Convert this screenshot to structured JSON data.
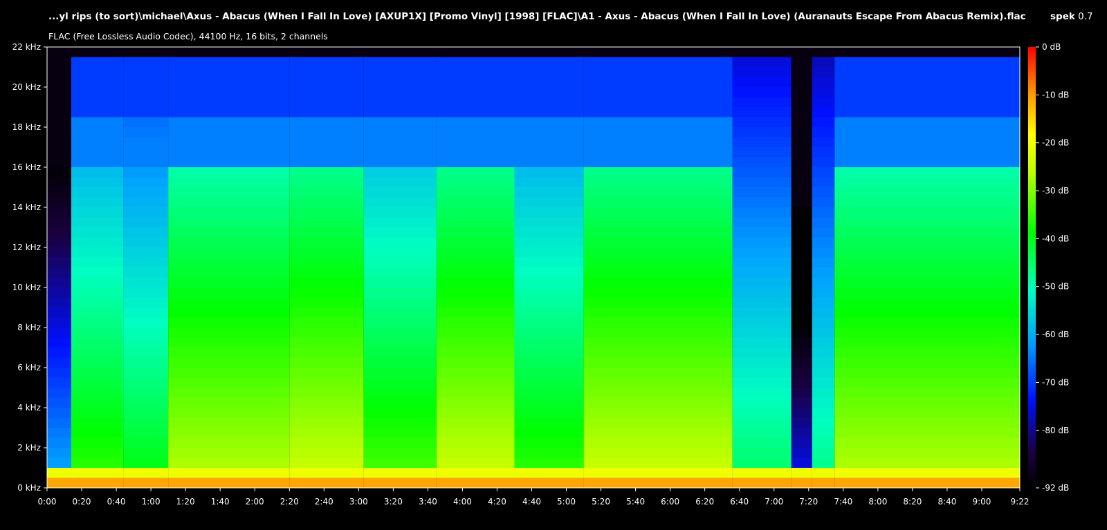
{
  "window": {
    "file_title": "...yl rips (to sort)\\michael\\Axus - Abacus (When I Fall In Love) [AXUP1X] [Promo Vinyl] [1998] [FLAC]\\A1 - Axus - Abacus (When I Fall In Love) (Auranauts Escape From Abacus Remix).flac",
    "app_name": "spek",
    "app_version": "0.7",
    "stream_info": "FLAC (Free Lossless Audio Codec), 44100 Hz, 16 bits, 2 channels"
  },
  "chart_data": {
    "type": "heatmap",
    "title": "...yl rips (to sort)\\michael\\Axus - Abacus (When I Fall In Love) [AXUP1X] [Promo Vinyl] [1998] [FLAC]\\A1 - Axus - Abacus (When I Fall In Love) (Auranauts Escape From Abacus Remix).flac",
    "subtitle": "FLAC (Free Lossless Audio Codec), 44100 Hz, 16 bits, 2 channels",
    "x_unit": "time",
    "y_unit": "kHz",
    "xlim_seconds": [
      0,
      562
    ],
    "ylim_khz": [
      0,
      22
    ],
    "x_ticks": [
      "0:00",
      "0:20",
      "0:40",
      "1:00",
      "1:20",
      "1:40",
      "2:00",
      "2:20",
      "2:40",
      "3:00",
      "3:20",
      "3:40",
      "4:00",
      "4:20",
      "4:40",
      "5:00",
      "5:20",
      "5:40",
      "6:00",
      "6:20",
      "6:40",
      "7:00",
      "7:20",
      "7:40",
      "8:00",
      "8:20",
      "8:40",
      "9:00",
      "9:22"
    ],
    "x_tick_seconds": [
      0,
      20,
      40,
      60,
      80,
      100,
      120,
      140,
      160,
      180,
      200,
      220,
      240,
      260,
      280,
      300,
      320,
      340,
      360,
      380,
      400,
      420,
      440,
      460,
      480,
      500,
      520,
      540,
      562
    ],
    "y_ticks": [
      "0 kHz",
      "2 kHz",
      "4 kHz",
      "6 kHz",
      "8 kHz",
      "10 kHz",
      "12 kHz",
      "14 kHz",
      "16 kHz",
      "18 kHz",
      "20 kHz",
      "22 kHz"
    ],
    "y_tick_values": [
      0,
      2,
      4,
      6,
      8,
      10,
      12,
      14,
      16,
      18,
      20,
      22
    ],
    "colorbar_ticks": [
      "0 dB",
      "-10 dB",
      "-20 dB",
      "-30 dB",
      "-40 dB",
      "-50 dB",
      "-60 dB",
      "-70 dB",
      "-80 dB",
      "-92 dB"
    ],
    "colorbar_values": [
      0,
      -10,
      -20,
      -30,
      -40,
      -50,
      -60,
      -70,
      -80,
      -92
    ],
    "colorbar_range_db": [
      -92,
      0
    ],
    "segments": [
      {
        "start": 0,
        "end": 14,
        "cutoff_khz": 16,
        "level": 0.35
      },
      {
        "start": 14,
        "end": 44,
        "cutoff_khz": 21.5,
        "level": 0.62
      },
      {
        "start": 44,
        "end": 70,
        "cutoff_khz": 21.5,
        "level": 0.58
      },
      {
        "start": 70,
        "end": 140,
        "cutoff_khz": 21.5,
        "level": 0.72
      },
      {
        "start": 140,
        "end": 183,
        "cutoff_khz": 21.5,
        "level": 0.74
      },
      {
        "start": 183,
        "end": 225,
        "cutoff_khz": 21.5,
        "level": 0.64
      },
      {
        "start": 225,
        "end": 270,
        "cutoff_khz": 21.5,
        "level": 0.74
      },
      {
        "start": 270,
        "end": 310,
        "cutoff_khz": 21.5,
        "level": 0.62
      },
      {
        "start": 310,
        "end": 396,
        "cutoff_khz": 21.5,
        "level": 0.74
      },
      {
        "start": 396,
        "end": 430,
        "cutoff_khz": 21.5,
        "level": 0.52
      },
      {
        "start": 430,
        "end": 442,
        "cutoff_khz": 14,
        "level": 0.2
      },
      {
        "start": 442,
        "end": 455,
        "cutoff_khz": 21.5,
        "level": 0.5
      },
      {
        "start": 455,
        "end": 562,
        "cutoff_khz": 21.5,
        "level": 0.72
      }
    ]
  }
}
